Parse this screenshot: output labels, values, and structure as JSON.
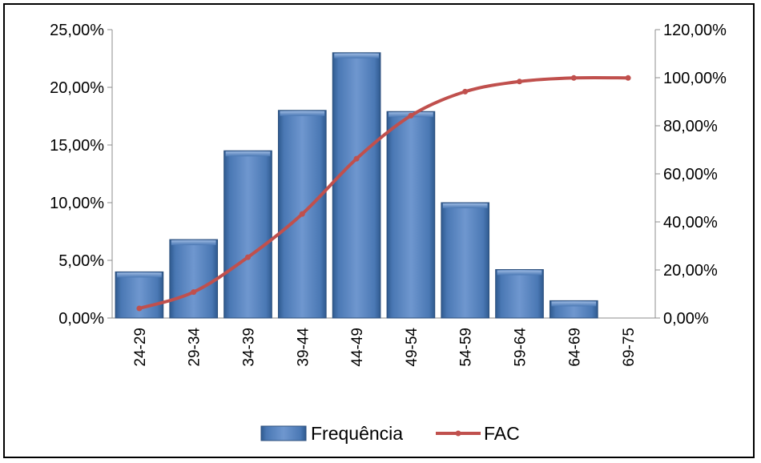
{
  "chart_data": {
    "type": "bar",
    "categories": [
      "24-29",
      "29-34",
      "34-39",
      "39-44",
      "44-49",
      "49-54",
      "54-59",
      "59-64",
      "64-69",
      "69-75"
    ],
    "series": [
      {
        "name": "Frequência",
        "type": "bar",
        "axis": "left",
        "color": "#4F81BD",
        "values": [
          4.0,
          6.8,
          14.5,
          18.0,
          23.0,
          17.9,
          10.0,
          4.2,
          1.5,
          0.0
        ]
      },
      {
        "name": "FAC",
        "type": "line",
        "axis": "right",
        "color": "#C0504D",
        "values": [
          4.0,
          10.8,
          25.3,
          43.3,
          66.3,
          84.2,
          94.2,
          98.4,
          99.9,
          99.9
        ]
      }
    ],
    "y_left": {
      "min": 0,
      "max": 25,
      "ticks": [
        0,
        5,
        10,
        15,
        20,
        25
      ],
      "tick_labels": [
        "0,00%",
        "5,00%",
        "10,00%",
        "15,00%",
        "20,00%",
        "25,00%"
      ]
    },
    "y_right": {
      "min": 0,
      "max": 120,
      "ticks": [
        0,
        20,
        40,
        60,
        80,
        100,
        120
      ],
      "tick_labels": [
        "0,00%",
        "20,00%",
        "40,00%",
        "60,00%",
        "80,00%",
        "100,00%",
        "120,00%"
      ]
    },
    "title": "",
    "xlabel": "",
    "grid": false,
    "legend_position": "bottom"
  }
}
